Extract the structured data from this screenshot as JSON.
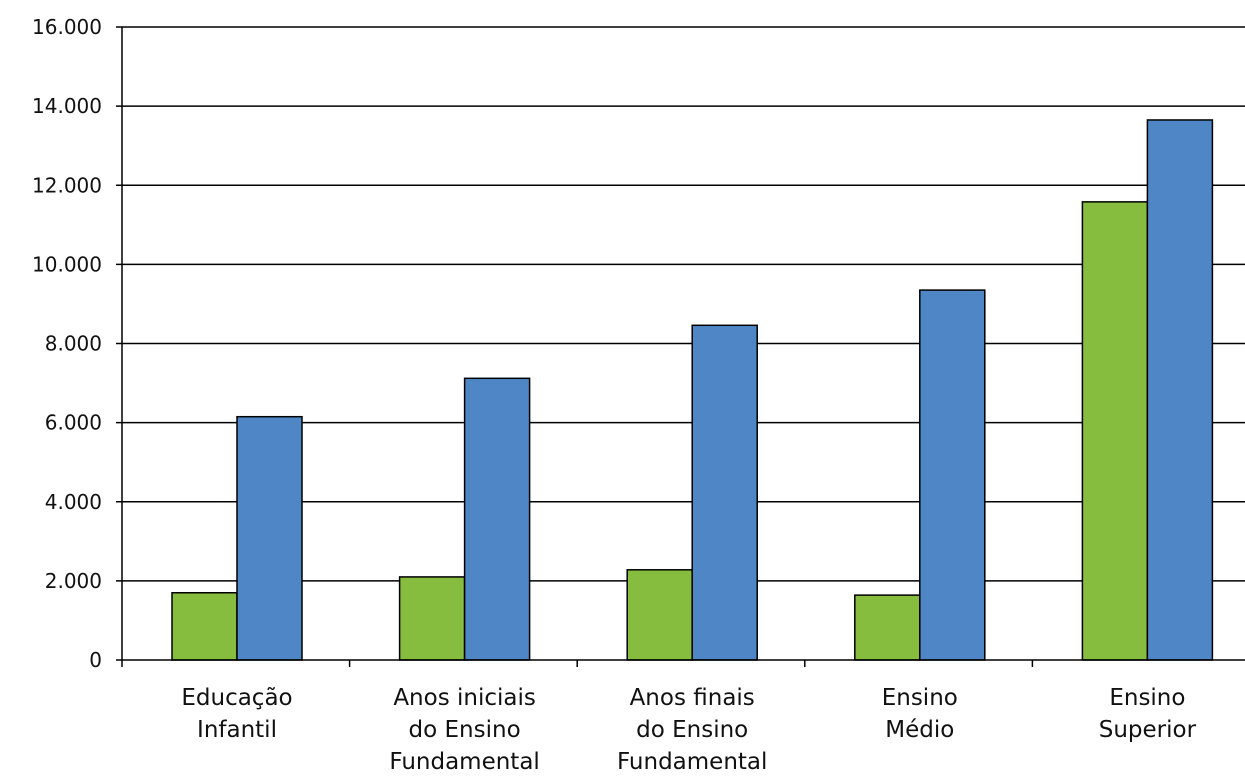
{
  "chart_data": {
    "type": "bar",
    "title": "",
    "xlabel": "",
    "ylabel": "",
    "ylim": [
      0,
      16000
    ],
    "yticks": [
      0,
      2000,
      4000,
      6000,
      8000,
      10000,
      12000,
      14000,
      16000
    ],
    "ytick_labels": [
      "0",
      "2.000",
      "4.000",
      "6.000",
      "8.000",
      "10.000",
      "12.000",
      "14.000",
      "16.000"
    ],
    "grid": true,
    "legend": "none",
    "categories": [
      [
        "Educação",
        "Infantil"
      ],
      [
        "Anos iniciais",
        "do Ensino",
        "Fundamental"
      ],
      [
        "Anos finais",
        "do Ensino",
        "Fundamental"
      ],
      [
        "Ensino",
        "Médio"
      ],
      [
        "Ensino",
        "Superior"
      ]
    ],
    "series": [
      {
        "color": "#86bd3f",
        "values": [
          1700,
          2100,
          2280,
          1640,
          11580
        ]
      },
      {
        "color": "#4f87c6",
        "values": [
          6150,
          7120,
          8460,
          9350,
          13650
        ]
      }
    ]
  }
}
